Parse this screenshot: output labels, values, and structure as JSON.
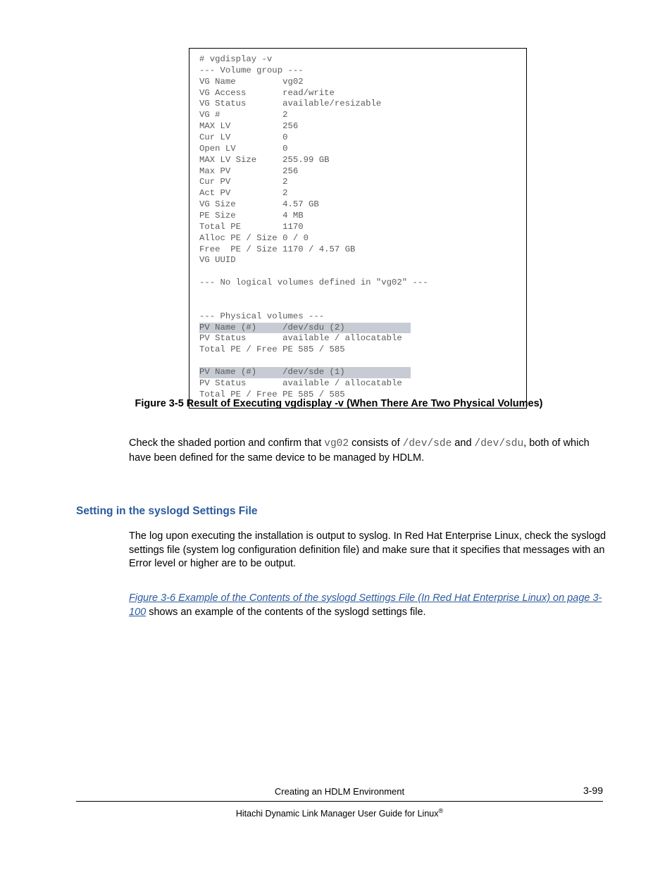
{
  "terminal": {
    "cmd": "# vgdisplay -v",
    "vg_header": "--- Volume group ---",
    "rows": [
      [
        "VG Name",
        "vg02"
      ],
      [
        "VG Access",
        "read/write"
      ],
      [
        "VG Status",
        "available/resizable"
      ],
      [
        "VG #",
        "2"
      ],
      [
        "MAX LV",
        "256"
      ],
      [
        "Cur LV",
        "0"
      ],
      [
        "Open LV",
        "0"
      ],
      [
        "MAX LV Size",
        "255.99 GB"
      ],
      [
        "Max PV",
        "256"
      ],
      [
        "Cur PV",
        "2"
      ],
      [
        "Act PV",
        "2"
      ],
      [
        "VG Size",
        "4.57 GB"
      ],
      [
        "PE Size",
        "4 MB"
      ],
      [
        "Total PE",
        "1170"
      ],
      [
        "Alloc PE / Size",
        "0 / 0"
      ],
      [
        "Free  PE / Size",
        "1170 / 4.57 GB"
      ],
      [
        "VG UUID",
        ""
      ]
    ],
    "no_lv": "--- No logical volumes defined in \"vg02\" ---",
    "pv_header": "--- Physical volumes ---",
    "pv1_name_label": "PV Name (#)",
    "pv1_name_val": "/dev/sdu (2)",
    "pv1_status_label": "PV Status",
    "pv1_status_val": "available / allocatable",
    "pv1_total": "Total PE / Free PE 585 / 585",
    "pv2_name_label": "PV Name (#)",
    "pv2_name_val": "/dev/sde (1)",
    "pv2_status_label": "PV Status",
    "pv2_status_val": "available / allocatable",
    "pv2_total": "Total PE / Free PE 585 / 585",
    "label_col_width": 16,
    "shaded_bg": "#c7ccd4"
  },
  "figure_caption": "Figure 3-5 Result of Executing vgdisplay -v (When There Are Two Physical Volumes)",
  "para1": {
    "pre": "Check the shaded portion and confirm that ",
    "code1": "vg02",
    "mid1": " consists of ",
    "code2": "/dev/sde",
    "mid2": " and ",
    "code3": "/dev/sdu",
    "post": ", both of which have been defined for the same device to be managed by HDLM."
  },
  "section_heading": "Setting in the syslogd Settings File",
  "para2": "The log upon executing the installation is output to syslog. In Red Hat Enterprise Linux, check the syslogd settings file (system log configuration definition file) and make sure that it specifies that messages with an Error level or higher are to be output.",
  "para3": {
    "link": "Figure 3-6 Example of the Contents of the syslogd Settings File (In Red Hat Enterprise Linux) on page 3-100",
    "post": " shows an example of the contents of the syslogd settings file."
  },
  "footer": {
    "center": "Creating an HDLM Environment",
    "subtitle_pre": "Hitachi Dynamic Link Manager User Guide for Linux",
    "subtitle_reg": "®",
    "page": "3-99"
  },
  "colors": {
    "heading": "#2a5a9e",
    "link": "#2a5a9e",
    "mono_text": "#5a5a5a",
    "body_text": "#000000",
    "background": "#ffffff",
    "border": "#000000"
  }
}
